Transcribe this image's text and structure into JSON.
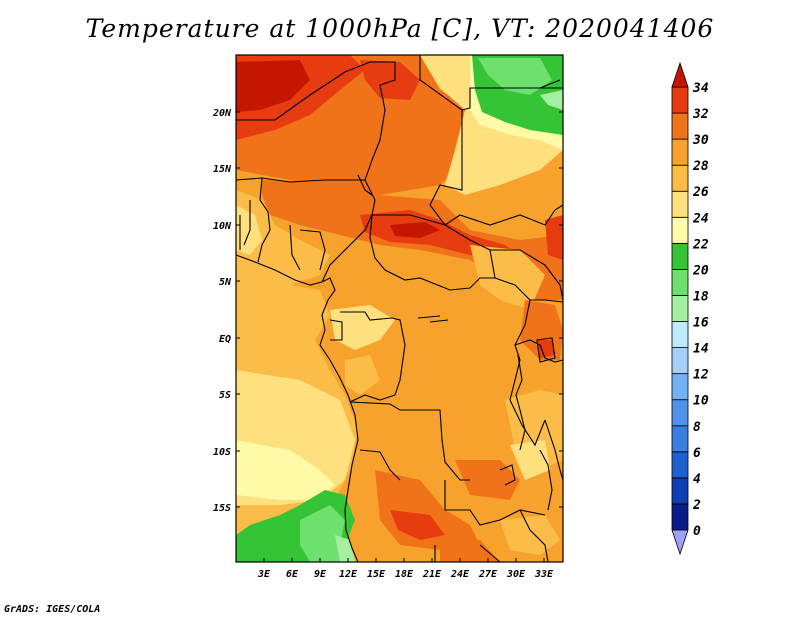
{
  "title": "Temperature at 1000hPa [C], VT: 2020041406",
  "footer": "GrADS: IGES/COLA",
  "map": {
    "lat_labels": [
      "20N",
      "15N",
      "10N",
      "5N",
      "EQ",
      "5S",
      "10S",
      "15S"
    ],
    "lon_labels": [
      "3E",
      "6E",
      "9E",
      "12E",
      "15E",
      "18E",
      "21E",
      "24E",
      "27E",
      "30E",
      "33E"
    ]
  },
  "colorbar": {
    "levels": [
      0,
      2,
      4,
      6,
      8,
      10,
      12,
      14,
      16,
      18,
      20,
      22,
      24,
      26,
      28,
      30,
      32,
      34
    ],
    "labels": [
      "0",
      "2",
      "4",
      "6",
      "8",
      "10",
      "12",
      "14",
      "16",
      "18",
      "20",
      "22",
      "24",
      "26",
      "28",
      "30",
      "32",
      "34"
    ],
    "colors": [
      "#a0a0ff",
      "#0a1c87",
      "#0f3fb4",
      "#1f60d1",
      "#3a7fe0",
      "#4f94ea",
      "#73b2f2",
      "#a3cff8",
      "#bfe9ff",
      "#a5f0a0",
      "#6ee06e",
      "#35c435",
      "#fffaa8",
      "#fee07e",
      "#fbbc48",
      "#f7a22d",
      "#f0731a",
      "#e63c10",
      "#c41600"
    ]
  },
  "colors": {
    "frame": "#000000",
    "border_line": "#000000",
    "coast_green_dark": "#3cc83c",
    "coast_green_light": "#76e176"
  }
}
